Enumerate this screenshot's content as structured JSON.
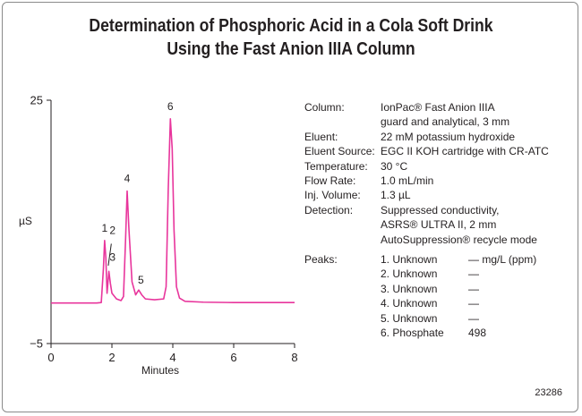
{
  "title": {
    "line1": "Determination of Phosphoric Acid in a Cola Soft Drink",
    "line2": "Using the Fast Anion IIIA Column"
  },
  "chart_data": {
    "type": "line",
    "xlabel": "Minutes",
    "ylabel": "µS",
    "xlim": [
      0,
      8
    ],
    "ylim": [
      -5,
      25
    ],
    "x_ticks": [
      "0",
      "2",
      "4",
      "6",
      "8"
    ],
    "y_ticks": [
      "25",
      "−5"
    ],
    "line_color": "#e8359c",
    "series": [
      {
        "values": [
          [
            0.0,
            0.0
          ],
          [
            1.5,
            0.0
          ],
          [
            1.65,
            0.05
          ],
          [
            1.72,
            4.2
          ],
          [
            1.76,
            7.7
          ],
          [
            1.8,
            5.6
          ],
          [
            1.84,
            1.2
          ],
          [
            1.9,
            3.9
          ],
          [
            1.95,
            2.4
          ],
          [
            2.0,
            1.2
          ],
          [
            2.15,
            0.5
          ],
          [
            2.3,
            0.3
          ],
          [
            2.38,
            0.8
          ],
          [
            2.45,
            8.0
          ],
          [
            2.5,
            13.8
          ],
          [
            2.56,
            9.0
          ],
          [
            2.66,
            2.6
          ],
          [
            2.78,
            1.0
          ],
          [
            2.88,
            1.6
          ],
          [
            2.98,
            1.0
          ],
          [
            3.1,
            0.5
          ],
          [
            3.4,
            0.4
          ],
          [
            3.7,
            0.5
          ],
          [
            3.78,
            2.0
          ],
          [
            3.85,
            14.0
          ],
          [
            3.92,
            22.7
          ],
          [
            3.98,
            19.0
          ],
          [
            4.04,
            9.0
          ],
          [
            4.12,
            2.0
          ],
          [
            4.22,
            0.6
          ],
          [
            4.4,
            0.2
          ],
          [
            5.0,
            0.1
          ],
          [
            6.0,
            0.05
          ],
          [
            8.0,
            0.05
          ]
        ]
      }
    ],
    "peak_labels": [
      {
        "text": "1",
        "x": 1.76,
        "y": 8.8
      },
      {
        "text": "2",
        "x": 2.02,
        "y": 8.5
      },
      {
        "text": "3",
        "x": 2.02,
        "y": 5.2
      },
      {
        "text": "4",
        "x": 2.5,
        "y": 14.9
      },
      {
        "text": "5",
        "x": 2.95,
        "y": 2.4
      },
      {
        "text": "6",
        "x": 3.92,
        "y": 23.8
      }
    ]
  },
  "conditions": [
    {
      "label": "Column:",
      "lines": [
        "IonPac® Fast Anion IIIA",
        "guard and analytical, 3 mm"
      ]
    },
    {
      "label": "Eluent:",
      "lines": [
        "22 mM potassium hydroxide"
      ]
    },
    {
      "label": "Eluent Source:",
      "lines": [
        "EGC II KOH cartridge with CR-ATC"
      ]
    },
    {
      "label": "Temperature:",
      "lines": [
        "30 °C"
      ]
    },
    {
      "label": "Flow Rate:",
      "lines": [
        "1.0 mL/min"
      ]
    },
    {
      "label": "Inj. Volume:",
      "lines": [
        "1.3 µL"
      ]
    },
    {
      "label": "Detection:",
      "lines": [
        "Suppressed conductivity,",
        "ASRS® ULTRA II, 2 mm",
        "AutoSuppression® recycle mode"
      ]
    }
  ],
  "peaks": {
    "label": "Peaks:",
    "items": [
      {
        "name": "1. Unknown",
        "value": "— mg/L (ppm)"
      },
      {
        "name": "2. Unknown",
        "value": "—"
      },
      {
        "name": "3. Unknown",
        "value": "—"
      },
      {
        "name": "4. Unknown",
        "value": "—"
      },
      {
        "name": "5. Unknown",
        "value": "—"
      },
      {
        "name": "6. Phosphate",
        "value": "498"
      }
    ]
  },
  "figure_id": "23286"
}
